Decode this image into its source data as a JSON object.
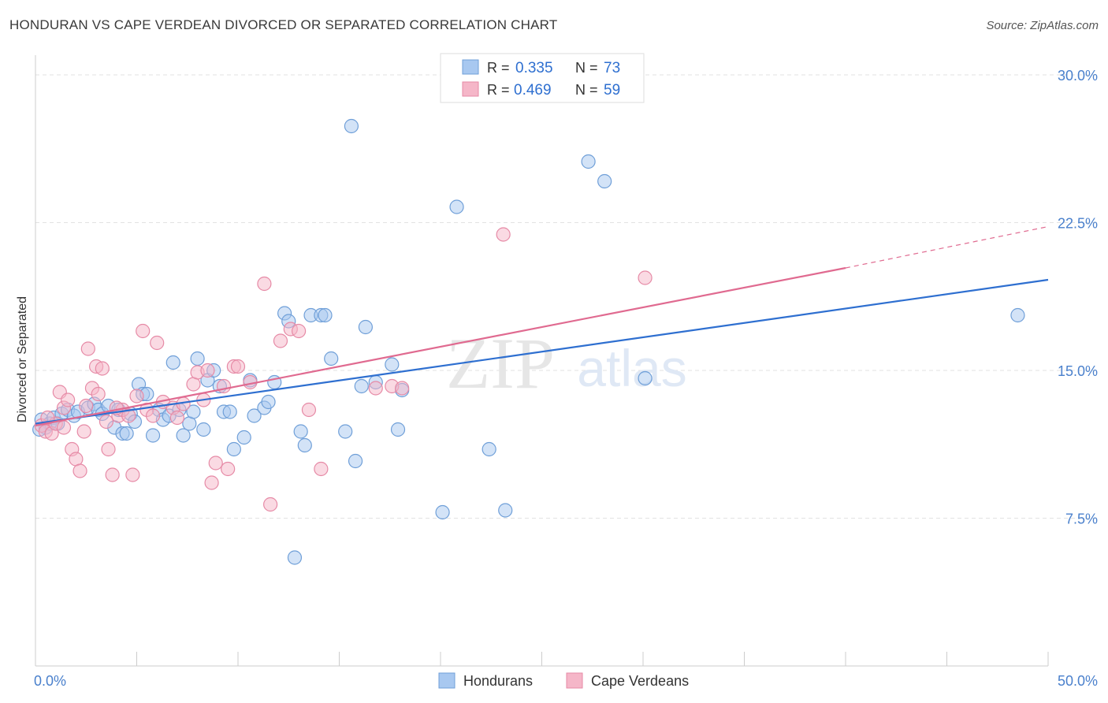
{
  "title": "HONDURAN VS CAPE VERDEAN DIVORCED OR SEPARATED CORRELATION CHART",
  "source": "Source: ZipAtlas.com",
  "watermark": {
    "zip": "ZIP",
    "atlas": "atlas"
  },
  "colors": {
    "blue_fill": "#a8c8f0",
    "blue_stroke": "#6f9fd8",
    "blue_line": "#2e6fd0",
    "pink_fill": "#f5b6c8",
    "pink_stroke": "#e68aa6",
    "pink_line": "#e06a90",
    "tick_label": "#4a80cc",
    "grid": "#e2e2e2",
    "axis": "#cccccc"
  },
  "legend": {
    "items": [
      {
        "r_label": "R = ",
        "r_value": "0.335",
        "n_label": "N = ",
        "n_value": "73",
        "series": "Hondurans"
      },
      {
        "r_label": "R = ",
        "r_value": "0.469",
        "n_label": "N = ",
        "n_value": "59",
        "series": "Cape Verdeans"
      }
    ]
  },
  "chart_data": {
    "type": "scatter",
    "title": "HONDURAN VS CAPE VERDEAN DIVORCED OR SEPARATED CORRELATION CHART",
    "xlabel": "",
    "ylabel": "Divorced or Separated",
    "xlim": [
      0,
      50
    ],
    "ylim": [
      0,
      31
    ],
    "x_tick_labels": [
      "0.0%",
      "50.0%"
    ],
    "y_ticks": [
      7.5,
      15.0,
      22.5,
      30.0
    ],
    "y_tick_labels": [
      "7.5%",
      "15.0%",
      "22.5%",
      "30.0%"
    ],
    "x_minor_ticks": [
      5,
      10,
      15,
      20,
      25,
      30,
      35,
      40,
      45,
      50
    ],
    "grid": true,
    "legend_position": "top-center",
    "series": [
      {
        "name": "Hondurans",
        "trend": {
          "x0": 0,
          "y0": 12.3,
          "x1": 50,
          "y1": 19.6
        },
        "points": [
          [
            0.3,
            12.5
          ],
          [
            0.5,
            12.1
          ],
          [
            0.7,
            12.3
          ],
          [
            0.9,
            12.6
          ],
          [
            1.1,
            12.3
          ],
          [
            1.3,
            12.8
          ],
          [
            1.6,
            13.0
          ],
          [
            1.9,
            12.7
          ],
          [
            2.1,
            12.9
          ],
          [
            2.6,
            13.1
          ],
          [
            2.9,
            13.3
          ],
          [
            3.1,
            13.0
          ],
          [
            3.3,
            12.8
          ],
          [
            3.6,
            13.2
          ],
          [
            3.9,
            12.1
          ],
          [
            4.1,
            13.0
          ],
          [
            4.3,
            11.8
          ],
          [
            4.5,
            11.8
          ],
          [
            4.7,
            12.8
          ],
          [
            4.9,
            12.4
          ],
          [
            5.1,
            14.3
          ],
          [
            5.3,
            13.8
          ],
          [
            5.5,
            13.8
          ],
          [
            5.8,
            11.7
          ],
          [
            6.1,
            13.0
          ],
          [
            6.3,
            12.5
          ],
          [
            6.6,
            12.7
          ],
          [
            6.8,
            15.4
          ],
          [
            7.1,
            13.0
          ],
          [
            7.3,
            11.7
          ],
          [
            7.6,
            12.3
          ],
          [
            7.8,
            12.9
          ],
          [
            8.0,
            15.6
          ],
          [
            8.3,
            12.0
          ],
          [
            8.5,
            14.5
          ],
          [
            8.8,
            15.0
          ],
          [
            9.1,
            14.2
          ],
          [
            9.3,
            12.9
          ],
          [
            9.6,
            12.9
          ],
          [
            9.8,
            11.0
          ],
          [
            10.3,
            11.6
          ],
          [
            10.6,
            14.5
          ],
          [
            10.8,
            12.7
          ],
          [
            11.3,
            13.1
          ],
          [
            11.5,
            13.4
          ],
          [
            11.8,
            14.4
          ],
          [
            12.3,
            17.9
          ],
          [
            12.5,
            17.5
          ],
          [
            12.8,
            5.5
          ],
          [
            13.1,
            11.9
          ],
          [
            13.3,
            11.2
          ],
          [
            13.6,
            17.8
          ],
          [
            14.1,
            17.8
          ],
          [
            14.3,
            17.8
          ],
          [
            14.6,
            15.6
          ],
          [
            15.3,
            11.9
          ],
          [
            15.6,
            27.4
          ],
          [
            15.8,
            10.4
          ],
          [
            16.1,
            14.2
          ],
          [
            16.3,
            17.2
          ],
          [
            16.8,
            14.4
          ],
          [
            17.6,
            15.3
          ],
          [
            17.9,
            12.0
          ],
          [
            18.1,
            14.0
          ],
          [
            20.1,
            7.8
          ],
          [
            20.8,
            23.3
          ],
          [
            22.4,
            11.0
          ],
          [
            23.2,
            7.9
          ],
          [
            27.3,
            25.6
          ],
          [
            28.1,
            24.6
          ],
          [
            30.1,
            14.6
          ],
          [
            48.5,
            17.8
          ],
          [
            0.2,
            12.0
          ]
        ]
      },
      {
        "name": "Cape Verdeans",
        "trend": {
          "x0": 0,
          "y0": 12.2,
          "x1": 40,
          "y1": 20.2,
          "dash_to_x": 50,
          "dash_to_y": 22.3
        },
        "points": [
          [
            0.3,
            12.2
          ],
          [
            0.5,
            11.9
          ],
          [
            0.8,
            11.8
          ],
          [
            1.0,
            12.3
          ],
          [
            1.2,
            13.9
          ],
          [
            1.4,
            13.1
          ],
          [
            1.6,
            13.5
          ],
          [
            1.8,
            11.0
          ],
          [
            2.0,
            10.5
          ],
          [
            2.2,
            9.9
          ],
          [
            2.4,
            11.9
          ],
          [
            2.5,
            13.2
          ],
          [
            2.6,
            16.1
          ],
          [
            2.8,
            14.1
          ],
          [
            3.0,
            15.2
          ],
          [
            3.1,
            13.8
          ],
          [
            3.3,
            15.1
          ],
          [
            3.5,
            12.4
          ],
          [
            3.6,
            11.0
          ],
          [
            3.8,
            9.7
          ],
          [
            4.1,
            12.7
          ],
          [
            4.3,
            13.0
          ],
          [
            4.6,
            12.7
          ],
          [
            4.8,
            9.7
          ],
          [
            5.0,
            13.7
          ],
          [
            5.3,
            17.0
          ],
          [
            5.5,
            13.0
          ],
          [
            5.8,
            12.7
          ],
          [
            6.0,
            16.4
          ],
          [
            6.3,
            13.4
          ],
          [
            6.8,
            13.1
          ],
          [
            7.0,
            12.6
          ],
          [
            7.3,
            13.3
          ],
          [
            7.8,
            14.3
          ],
          [
            8.0,
            14.9
          ],
          [
            8.3,
            13.5
          ],
          [
            8.5,
            15.0
          ],
          [
            8.7,
            9.3
          ],
          [
            8.9,
            10.3
          ],
          [
            9.3,
            14.2
          ],
          [
            9.5,
            10.0
          ],
          [
            9.8,
            15.2
          ],
          [
            10.0,
            15.2
          ],
          [
            10.6,
            14.4
          ],
          [
            11.3,
            19.4
          ],
          [
            11.6,
            8.2
          ],
          [
            12.1,
            16.5
          ],
          [
            12.6,
            17.1
          ],
          [
            13.0,
            17.0
          ],
          [
            13.5,
            13.0
          ],
          [
            14.1,
            10.0
          ],
          [
            16.8,
            14.1
          ],
          [
            17.6,
            14.2
          ],
          [
            18.1,
            14.1
          ],
          [
            23.1,
            21.9
          ],
          [
            30.1,
            19.7
          ],
          [
            0.6,
            12.6
          ],
          [
            1.4,
            12.1
          ],
          [
            4.0,
            13.1
          ]
        ]
      }
    ]
  }
}
